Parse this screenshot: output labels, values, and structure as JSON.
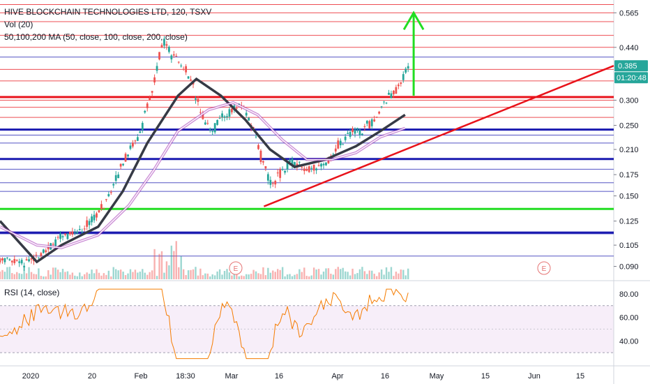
{
  "header": {
    "title": "HIVE BLOCKCHAIN TECHNOLOGIES LTD, 120, TSXV",
    "volume": "Vol (20)",
    "ma": "50,100,200 MA (50, close, 100, close, 200, close)",
    "rsi": "RSI (14, close)"
  },
  "badges": {
    "price": "0.385",
    "countdown": "01:20:48",
    "price_color": "#26a69a",
    "earnings": [
      "E",
      "E"
    ]
  },
  "colors": {
    "up": "#26a69a",
    "down": "#ef5350",
    "ma50": "#363a45",
    "ma100": "#9c27b0",
    "rsi": "#f57c00",
    "support_red": "#e8121a",
    "support_blue": "#1a1ab0",
    "support_green": "#22dd22",
    "arrow": "#22dd22"
  },
  "chart_data": [
    {
      "type": "candlestick",
      "title": "HIVE BLOCKCHAIN TECHNOLOGIES LTD, 120, TSXV",
      "x_ticks": [
        "2020",
        "20",
        "Feb",
        "18:30",
        "Mar",
        "16",
        "Apr",
        "16",
        "May",
        "15",
        "Jun",
        "15"
      ],
      "y_ticks": [
        0.565,
        0.44,
        0.385,
        0.3,
        0.25,
        0.21,
        0.175,
        0.15,
        0.125,
        0.105,
        0.09
      ],
      "y_tick_labels": [
        "0.565",
        "0.440",
        "0.385",
        "0.300",
        "0.250",
        "0.210",
        "0.175",
        "0.150",
        "0.125",
        "0.105",
        "0.090"
      ],
      "yscale": "log",
      "last_price": 0.385,
      "ma_series": [
        {
          "name": "MA 50",
          "color": "#363a45",
          "values": [
            [
              0.0,
              0.125
            ],
            [
              0.06,
              0.093
            ],
            [
              0.1,
              0.105
            ],
            [
              0.16,
              0.12
            ],
            [
              0.2,
              0.155
            ],
            [
              0.24,
              0.22
            ],
            [
              0.29,
              0.31
            ],
            [
              0.32,
              0.35
            ],
            [
              0.36,
              0.31
            ],
            [
              0.4,
              0.26
            ],
            [
              0.44,
              0.21
            ],
            [
              0.48,
              0.185
            ],
            [
              0.53,
              0.195
            ],
            [
              0.58,
              0.215
            ],
            [
              0.62,
              0.24
            ],
            [
              0.66,
              0.27
            ]
          ]
        },
        {
          "name": "MA 100",
          "color": "#9c27b0",
          "values": [
            [
              0.0,
              0.12
            ],
            [
              0.06,
              0.105
            ],
            [
              0.1,
              0.103
            ],
            [
              0.16,
              0.113
            ],
            [
              0.21,
              0.14
            ],
            [
              0.25,
              0.18
            ],
            [
              0.29,
              0.24
            ],
            [
              0.34,
              0.28
            ],
            [
              0.38,
              0.295
            ],
            [
              0.42,
              0.27
            ],
            [
              0.46,
              0.225
            ],
            [
              0.5,
              0.195
            ],
            [
              0.54,
              0.195
            ],
            [
              0.58,
              0.205
            ],
            [
              0.62,
              0.23
            ],
            [
              0.66,
              0.245
            ]
          ]
        }
      ],
      "horizontal_levels": [
        {
          "value": 0.6,
          "color": "#e8121a",
          "width": 1
        },
        {
          "value": 0.565,
          "color": "#e8121a",
          "width": 1
        },
        {
          "value": 0.53,
          "color": "#e8121a",
          "width": 1
        },
        {
          "value": 0.48,
          "color": "#e8121a",
          "width": 1
        },
        {
          "value": 0.44,
          "color": "#e8121a",
          "width": 1
        },
        {
          "value": 0.41,
          "color": "#1a1ab0",
          "width": 1
        },
        {
          "value": 0.375,
          "color": "#e8121a",
          "width": 1
        },
        {
          "value": 0.345,
          "color": "#e8121a",
          "width": 1
        },
        {
          "value": 0.3,
          "color": "#e8121a",
          "width": 1
        },
        {
          "value": 0.285,
          "color": "#e8121a",
          "width": 1
        },
        {
          "value": 0.265,
          "color": "#e8121a",
          "width": 1
        },
        {
          "value": 0.233,
          "color": "#1a1ab0",
          "width": 1
        },
        {
          "value": 0.22,
          "color": "#1a1ab0",
          "width": 1
        },
        {
          "value": 0.196,
          "color": "#1a1ab0",
          "width": 1
        },
        {
          "value": 0.182,
          "color": "#1a1ab0",
          "width": 1
        },
        {
          "value": 0.165,
          "color": "#1a1ab0",
          "width": 1
        },
        {
          "value": 0.155,
          "color": "#1a1ab0",
          "width": 1
        },
        {
          "value": 0.114,
          "color": "#1a1ab0",
          "width": 1
        },
        {
          "value": 0.097,
          "color": "#1a1ab0",
          "width": 1
        }
      ],
      "strong_levels": [
        {
          "value": 0.307,
          "color": "#e8121a"
        },
        {
          "value": 0.2425,
          "color": "#1a1ab0"
        },
        {
          "value": 0.196,
          "color": "#1a1ab0"
        },
        {
          "value": 0.1365,
          "color": "#22dd22"
        },
        {
          "value": 0.115,
          "color": "#1a1ab0"
        }
      ],
      "trendline": {
        "from": [
          0.43,
          0.139
        ],
        "to": [
          1.0,
          0.385
        ],
        "color": "#e8121a"
      },
      "arrow": {
        "x": 0.674,
        "from": 0.31,
        "to": 0.565,
        "color": "#22dd22"
      }
    },
    {
      "type": "line",
      "title": "RSI (14, close)",
      "y_ticks": [
        80,
        60,
        40
      ],
      "y_tick_labels": [
        "80.00",
        "60.00",
        "40.00"
      ],
      "band": [
        30,
        70
      ],
      "last_value": 81
    }
  ]
}
